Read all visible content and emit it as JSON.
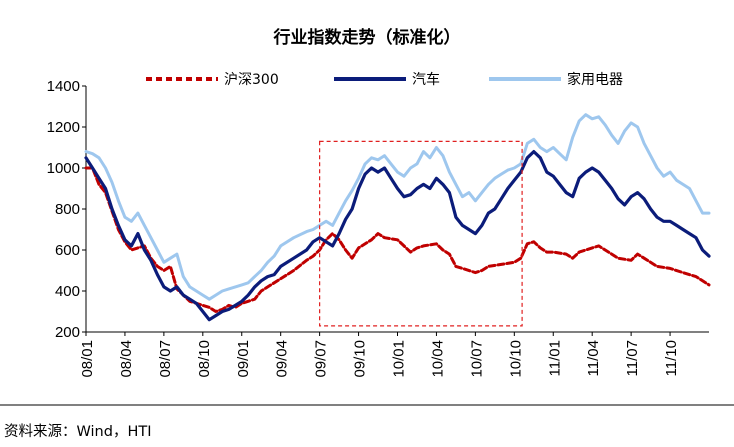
{
  "chart_data": {
    "type": "line",
    "title": "行业指数走势（标准化）",
    "source": "资料来源：Wind，HTI",
    "ylim": [
      200,
      1400
    ],
    "yticks": [
      200,
      400,
      600,
      800,
      1000,
      1200,
      1400
    ],
    "x_range": [
      0,
      48
    ],
    "xticks": [
      {
        "label": "08/01",
        "x": 0
      },
      {
        "label": "08/04",
        "x": 3
      },
      {
        "label": "08/07",
        "x": 6
      },
      {
        "label": "08/10",
        "x": 9
      },
      {
        "label": "09/01",
        "x": 12
      },
      {
        "label": "09/04",
        "x": 15
      },
      {
        "label": "09/07",
        "x": 18
      },
      {
        "label": "09/10",
        "x": 21
      },
      {
        "label": "10/01",
        "x": 24
      },
      {
        "label": "10/04",
        "x": 27
      },
      {
        "label": "10/07",
        "x": 30
      },
      {
        "label": "10/10",
        "x": 33
      },
      {
        "label": "11/01",
        "x": 36
      },
      {
        "label": "11/04",
        "x": 39
      },
      {
        "label": "11/07",
        "x": 42
      },
      {
        "label": "11/10",
        "x": 45
      }
    ],
    "highlight_range": {
      "x": [
        18,
        33.6
      ],
      "y": [
        230,
        1130
      ]
    },
    "series": [
      {
        "name": "沪深300",
        "color": "#c00000",
        "style": "dashed",
        "points": [
          [
            0,
            1000
          ],
          [
            0.5,
            1000
          ],
          [
            1,
            920
          ],
          [
            1.5,
            880
          ],
          [
            2,
            790
          ],
          [
            2.5,
            700
          ],
          [
            3,
            640
          ],
          [
            3.5,
            600
          ],
          [
            4,
            610
          ],
          [
            4.5,
            620
          ],
          [
            5,
            560
          ],
          [
            5.5,
            520
          ],
          [
            6,
            500
          ],
          [
            6.5,
            520
          ],
          [
            7,
            410
          ],
          [
            7.5,
            380
          ],
          [
            8,
            350
          ],
          [
            8.5,
            340
          ],
          [
            9,
            330
          ],
          [
            9.5,
            320
          ],
          [
            10,
            300
          ],
          [
            10.5,
            310
          ],
          [
            11,
            330
          ],
          [
            11.5,
            320
          ],
          [
            12,
            340
          ],
          [
            12.5,
            350
          ],
          [
            13,
            360
          ],
          [
            13.5,
            400
          ],
          [
            14,
            420
          ],
          [
            14.5,
            440
          ],
          [
            15,
            460
          ],
          [
            16,
            500
          ],
          [
            17,
            550
          ],
          [
            17.5,
            570
          ],
          [
            18,
            600
          ],
          [
            18.5,
            650
          ],
          [
            19,
            680
          ],
          [
            19.5,
            650
          ],
          [
            20,
            600
          ],
          [
            20.5,
            560
          ],
          [
            21,
            610
          ],
          [
            22,
            650
          ],
          [
            22.5,
            680
          ],
          [
            23,
            660
          ],
          [
            24,
            650
          ],
          [
            24.5,
            620
          ],
          [
            25,
            590
          ],
          [
            25.5,
            610
          ],
          [
            26,
            620
          ],
          [
            27,
            630
          ],
          [
            27.5,
            600
          ],
          [
            28,
            580
          ],
          [
            28.5,
            520
          ],
          [
            29,
            510
          ],
          [
            30,
            490
          ],
          [
            30.5,
            500
          ],
          [
            31,
            520
          ],
          [
            32,
            530
          ],
          [
            33,
            540
          ],
          [
            33.5,
            560
          ],
          [
            34,
            630
          ],
          [
            34.5,
            640
          ],
          [
            35,
            610
          ],
          [
            35.5,
            590
          ],
          [
            36,
            590
          ],
          [
            37,
            580
          ],
          [
            37.5,
            560
          ],
          [
            38,
            590
          ],
          [
            39,
            610
          ],
          [
            39.5,
            620
          ],
          [
            40,
            600
          ],
          [
            40.5,
            580
          ],
          [
            41,
            560
          ],
          [
            42,
            550
          ],
          [
            42.5,
            580
          ],
          [
            43,
            560
          ],
          [
            44,
            520
          ],
          [
            45,
            510
          ],
          [
            46,
            490
          ],
          [
            47,
            470
          ],
          [
            48,
            430
          ]
        ]
      },
      {
        "name": "汽车",
        "color": "#0b1c7a",
        "style": "solid",
        "points": [
          [
            0,
            1050
          ],
          [
            0.5,
            1000
          ],
          [
            1,
            950
          ],
          [
            1.5,
            900
          ],
          [
            2,
            800
          ],
          [
            2.5,
            720
          ],
          [
            3,
            650
          ],
          [
            3.5,
            620
          ],
          [
            4,
            680
          ],
          [
            4.5,
            600
          ],
          [
            5,
            550
          ],
          [
            5.5,
            480
          ],
          [
            6,
            420
          ],
          [
            6.5,
            400
          ],
          [
            7,
            420
          ],
          [
            7.5,
            380
          ],
          [
            8,
            360
          ],
          [
            8.5,
            340
          ],
          [
            9,
            300
          ],
          [
            9.5,
            260
          ],
          [
            10,
            280
          ],
          [
            10.5,
            300
          ],
          [
            11,
            310
          ],
          [
            11.5,
            330
          ],
          [
            12,
            350
          ],
          [
            12.5,
            380
          ],
          [
            13,
            420
          ],
          [
            13.5,
            450
          ],
          [
            14,
            470
          ],
          [
            14.5,
            480
          ],
          [
            15,
            520
          ],
          [
            16,
            560
          ],
          [
            17,
            600
          ],
          [
            17.5,
            640
          ],
          [
            18,
            660
          ],
          [
            18.5,
            640
          ],
          [
            19,
            620
          ],
          [
            19.5,
            680
          ],
          [
            20,
            750
          ],
          [
            20.5,
            800
          ],
          [
            21,
            900
          ],
          [
            21.5,
            970
          ],
          [
            22,
            1000
          ],
          [
            22.5,
            980
          ],
          [
            23,
            1000
          ],
          [
            23.5,
            950
          ],
          [
            24,
            900
          ],
          [
            24.5,
            860
          ],
          [
            25,
            870
          ],
          [
            25.5,
            900
          ],
          [
            26,
            920
          ],
          [
            26.5,
            900
          ],
          [
            27,
            950
          ],
          [
            27.5,
            920
          ],
          [
            28,
            880
          ],
          [
            28.5,
            760
          ],
          [
            29,
            720
          ],
          [
            29.5,
            700
          ],
          [
            30,
            680
          ],
          [
            30.5,
            720
          ],
          [
            31,
            780
          ],
          [
            31.5,
            800
          ],
          [
            32,
            850
          ],
          [
            32.5,
            900
          ],
          [
            33,
            940
          ],
          [
            33.5,
            980
          ],
          [
            34,
            1050
          ],
          [
            34.5,
            1080
          ],
          [
            35,
            1050
          ],
          [
            35.5,
            980
          ],
          [
            36,
            960
          ],
          [
            36.5,
            920
          ],
          [
            37,
            880
          ],
          [
            37.5,
            860
          ],
          [
            38,
            950
          ],
          [
            38.5,
            980
          ],
          [
            39,
            1000
          ],
          [
            39.5,
            980
          ],
          [
            40,
            940
          ],
          [
            40.5,
            900
          ],
          [
            41,
            850
          ],
          [
            41.5,
            820
          ],
          [
            42,
            860
          ],
          [
            42.5,
            880
          ],
          [
            43,
            850
          ],
          [
            43.5,
            800
          ],
          [
            44,
            760
          ],
          [
            44.5,
            740
          ],
          [
            45,
            740
          ],
          [
            45.5,
            720
          ],
          [
            46,
            700
          ],
          [
            46.5,
            680
          ],
          [
            47,
            660
          ],
          [
            47.5,
            600
          ],
          [
            48,
            570
          ]
        ]
      },
      {
        "name": "家用电器",
        "color": "#9ec7ee",
        "style": "solid",
        "points": [
          [
            0,
            1080
          ],
          [
            0.5,
            1070
          ],
          [
            1,
            1050
          ],
          [
            1.5,
            1000
          ],
          [
            2,
            930
          ],
          [
            2.5,
            840
          ],
          [
            3,
            760
          ],
          [
            3.5,
            740
          ],
          [
            4,
            780
          ],
          [
            4.5,
            720
          ],
          [
            5,
            660
          ],
          [
            5.5,
            600
          ],
          [
            6,
            540
          ],
          [
            6.5,
            560
          ],
          [
            7,
            580
          ],
          [
            7.5,
            470
          ],
          [
            8,
            420
          ],
          [
            8.5,
            400
          ],
          [
            9,
            380
          ],
          [
            9.5,
            360
          ],
          [
            10,
            380
          ],
          [
            10.5,
            400
          ],
          [
            11,
            410
          ],
          [
            11.5,
            420
          ],
          [
            12,
            430
          ],
          [
            12.5,
            440
          ],
          [
            13,
            470
          ],
          [
            13.5,
            500
          ],
          [
            14,
            540
          ],
          [
            14.5,
            570
          ],
          [
            15,
            620
          ],
          [
            16,
            660
          ],
          [
            17,
            690
          ],
          [
            17.5,
            700
          ],
          [
            18,
            720
          ],
          [
            18.5,
            740
          ],
          [
            19,
            720
          ],
          [
            19.5,
            780
          ],
          [
            20,
            840
          ],
          [
            20.5,
            890
          ],
          [
            21,
            950
          ],
          [
            21.5,
            1020
          ],
          [
            22,
            1050
          ],
          [
            22.5,
            1040
          ],
          [
            23,
            1060
          ],
          [
            23.5,
            1020
          ],
          [
            24,
            980
          ],
          [
            24.5,
            960
          ],
          [
            25,
            1000
          ],
          [
            25.5,
            1020
          ],
          [
            26,
            1080
          ],
          [
            26.5,
            1050
          ],
          [
            27,
            1100
          ],
          [
            27.5,
            1060
          ],
          [
            28,
            980
          ],
          [
            28.5,
            920
          ],
          [
            29,
            860
          ],
          [
            29.5,
            880
          ],
          [
            30,
            840
          ],
          [
            30.5,
            880
          ],
          [
            31,
            920
          ],
          [
            31.5,
            950
          ],
          [
            32,
            970
          ],
          [
            32.5,
            990
          ],
          [
            33,
            1000
          ],
          [
            33.5,
            1020
          ],
          [
            34,
            1120
          ],
          [
            34.5,
            1140
          ],
          [
            35,
            1100
          ],
          [
            35.5,
            1080
          ],
          [
            36,
            1100
          ],
          [
            36.5,
            1070
          ],
          [
            37,
            1040
          ],
          [
            37.5,
            1150
          ],
          [
            38,
            1230
          ],
          [
            38.5,
            1260
          ],
          [
            39,
            1240
          ],
          [
            39.5,
            1250
          ],
          [
            40,
            1210
          ],
          [
            40.5,
            1160
          ],
          [
            41,
            1120
          ],
          [
            41.5,
            1180
          ],
          [
            42,
            1220
          ],
          [
            42.5,
            1200
          ],
          [
            43,
            1120
          ],
          [
            43.5,
            1060
          ],
          [
            44,
            1000
          ],
          [
            44.5,
            960
          ],
          [
            45,
            980
          ],
          [
            45.5,
            940
          ],
          [
            46,
            920
          ],
          [
            46.5,
            900
          ],
          [
            47,
            840
          ],
          [
            47.5,
            780
          ],
          [
            48,
            780
          ]
        ]
      }
    ]
  }
}
